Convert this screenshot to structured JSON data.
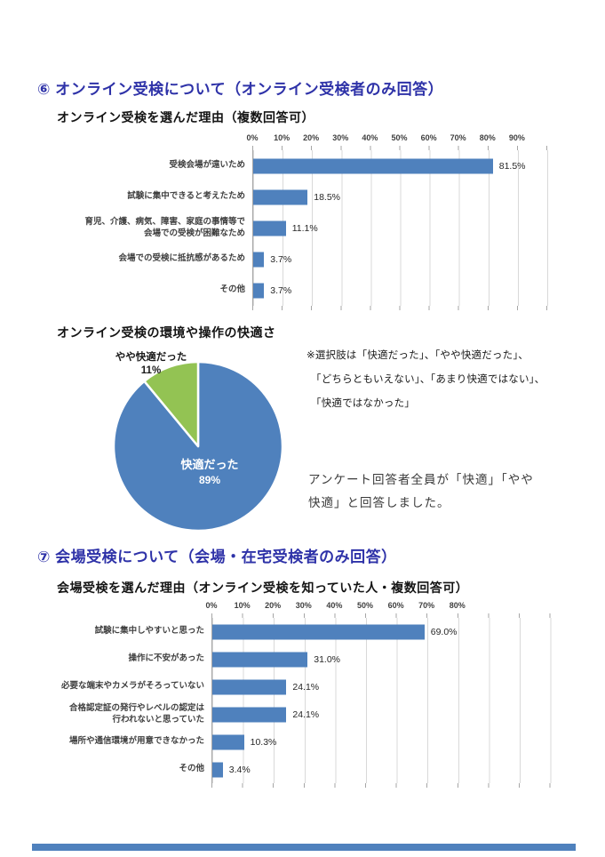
{
  "colors": {
    "heading": "#2e32a8",
    "bar": "#4f81bd",
    "pie_blue": "#4f81bd",
    "pie_green": "#93c353",
    "grid": "#d9d9d9",
    "tick": "#a6a6a6",
    "footer_bar": "#4f81bd"
  },
  "section6": {
    "heading": "⑥ オンライン受検について（オンライン受検者のみ回答）"
  },
  "section7": {
    "heading": "⑦ 会場受検について（会場・在宅受検者のみ回答）"
  },
  "notes": {
    "option_note_lines": [
      "※選択肢は「快適だった」、「やや快適だった」、",
      "「どちらともいえない」、「あまり快適ではない」、",
      "「快適ではなかった」"
    ],
    "comment_lines": [
      "アンケート回答者全員が「快適」「やや",
      "快適」と回答しました。"
    ]
  },
  "chart_data": [
    {
      "type": "bar",
      "orientation": "horizontal",
      "title": "オンライン受検を選んだ理由（複数回答可）",
      "categories": [
        "受検会場が遠いため",
        "試験に集中できると考えたため",
        "育児、介護、病気、障害、家庭の事情等で\n会場での受検が困難なため",
        "会場での受検に抵抗感があるため",
        "その他"
      ],
      "values": [
        81.5,
        18.5,
        11.1,
        3.7,
        3.7
      ],
      "value_labels": [
        "81.5%",
        "18.5%",
        "11.1%",
        "3.7%",
        "3.7%"
      ],
      "tick_labels": [
        "0%",
        "10%",
        "20%",
        "30%",
        "40%",
        "50%",
        "60%",
        "70%",
        "80%",
        "90%"
      ],
      "xlim": [
        0,
        100
      ],
      "grid": true
    },
    {
      "type": "pie",
      "title": "オンライン受検の環境や操作の快適さ",
      "slices": [
        {
          "label": "快適だった",
          "value": 89,
          "pct_label": "89%",
          "color": "#4f81bd",
          "label_color": "#ffffff"
        },
        {
          "label": "やや快適だった",
          "value": 11,
          "pct_label": "11%",
          "color": "#93c353",
          "label_color": "#1a1a1a"
        }
      ],
      "legend_position": "none"
    },
    {
      "type": "bar",
      "orientation": "horizontal",
      "title": "会場受検を選んだ理由（オンライン受検を知っていた人・複数回答可）",
      "categories": [
        "試験に集中しやすいと思った",
        "操作に不安があった",
        "必要な端末やカメラがそろっていない",
        "合格認定証の発行やレベルの認定は\n行われないと思っていた",
        "場所や通信環境が用意できなかった",
        "その他"
      ],
      "values": [
        69.0,
        31.0,
        24.1,
        24.1,
        10.3,
        3.4
      ],
      "value_labels": [
        "69.0%",
        "31.0%",
        "24.1%",
        "24.1%",
        "10.3%",
        "3.4%"
      ],
      "tick_labels": [
        "0%",
        "10%",
        "20%",
        "30%",
        "40%",
        "50%",
        "60%",
        "70%",
        "80%"
      ],
      "xlim": [
        0,
        110
      ],
      "grid": true
    }
  ]
}
